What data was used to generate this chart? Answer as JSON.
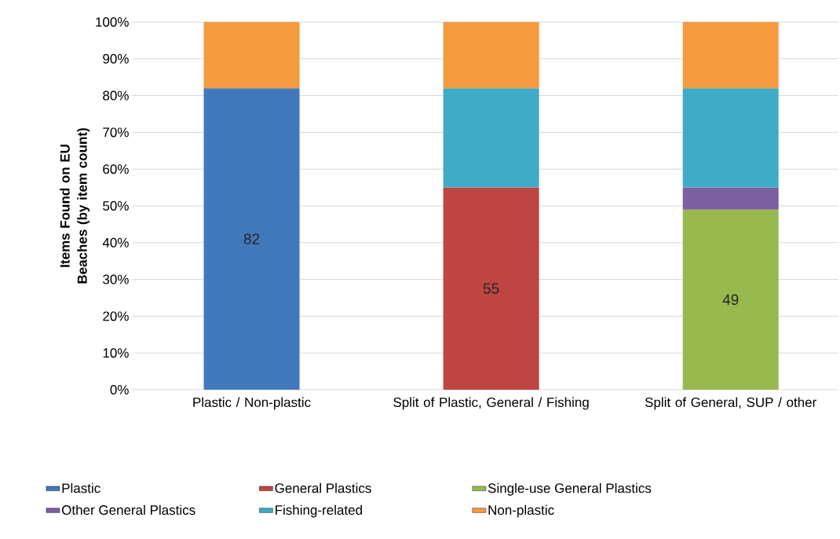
{
  "chart_data": {
    "type": "bar",
    "stacked": true,
    "ylabel": "Items Found on EU Beaches (by item count)",
    "categories": [
      "Plastic / Non-plastic",
      "Split of Plastic, General / Fishing",
      "Split of General, SUP / other"
    ],
    "series": [
      {
        "name": "Plastic",
        "color": "#4178bc",
        "values": [
          82,
          null,
          null
        ],
        "value_labels": [
          "82",
          null,
          null
        ]
      },
      {
        "name": "General Plastics",
        "color": "#be4542",
        "values": [
          null,
          55,
          null
        ],
        "value_labels": [
          null,
          "55",
          null
        ]
      },
      {
        "name": "Single-use General Plastics",
        "color": "#98b94e",
        "values": [
          null,
          null,
          49
        ],
        "value_labels": [
          null,
          null,
          "49"
        ]
      },
      {
        "name": "Other General Plastics",
        "color": "#7c5fa0",
        "values": [
          null,
          null,
          6
        ]
      },
      {
        "name": "Fishing-related",
        "color": "#3fabc6",
        "values": [
          null,
          27,
          27
        ]
      },
      {
        "name": "Non-plastic",
        "color": "#f59a3e",
        "values": [
          18,
          18,
          18
        ]
      }
    ],
    "ylim": [
      0,
      100
    ],
    "yticks": [
      {
        "value": 0,
        "label": "0%"
      },
      {
        "value": 10,
        "label": "10%"
      },
      {
        "value": 20,
        "label": "20%"
      },
      {
        "value": 30,
        "label": "30%"
      },
      {
        "value": 40,
        "label": "40%"
      },
      {
        "value": 50,
        "label": "50%"
      },
      {
        "value": 60,
        "label": "60%"
      },
      {
        "value": 70,
        "label": "70%"
      },
      {
        "value": 80,
        "label": "80%"
      },
      {
        "value": 90,
        "label": "90%"
      },
      {
        "value": 100,
        "label": "100%"
      }
    ],
    "grid": "y",
    "legend": "bottom"
  }
}
